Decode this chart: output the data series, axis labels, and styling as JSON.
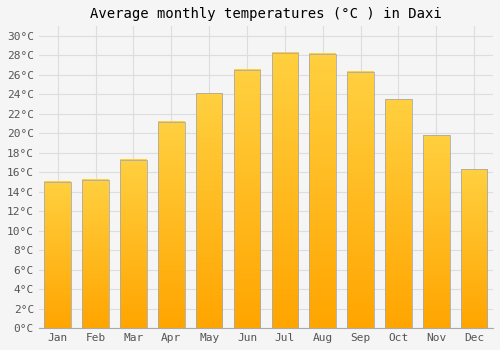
{
  "title": "Average monthly temperatures (°C ) in Daxi",
  "months": [
    "Jan",
    "Feb",
    "Mar",
    "Apr",
    "May",
    "Jun",
    "Jul",
    "Aug",
    "Sep",
    "Oct",
    "Nov",
    "Dec"
  ],
  "values": [
    15.0,
    15.2,
    17.3,
    21.2,
    24.1,
    26.5,
    28.3,
    28.2,
    26.3,
    23.5,
    19.8,
    16.3
  ],
  "bar_color_bottom": "#FFA500",
  "bar_color_top": "#FFD040",
  "bar_edge_color": "#AAAAAA",
  "background_color": "#F5F5F5",
  "plot_bg_color": "#F5F5F5",
  "grid_color": "#DDDDDD",
  "ytick_labels": [
    "0°C",
    "2°C",
    "4°C",
    "6°C",
    "8°C",
    "10°C",
    "12°C",
    "14°C",
    "16°C",
    "18°C",
    "20°C",
    "22°C",
    "24°C",
    "26°C",
    "28°C",
    "30°C"
  ],
  "ytick_values": [
    0,
    2,
    4,
    6,
    8,
    10,
    12,
    14,
    16,
    18,
    20,
    22,
    24,
    26,
    28,
    30
  ],
  "ylim": [
    0,
    31
  ],
  "title_fontsize": 10,
  "tick_fontsize": 8,
  "font_family": "monospace"
}
